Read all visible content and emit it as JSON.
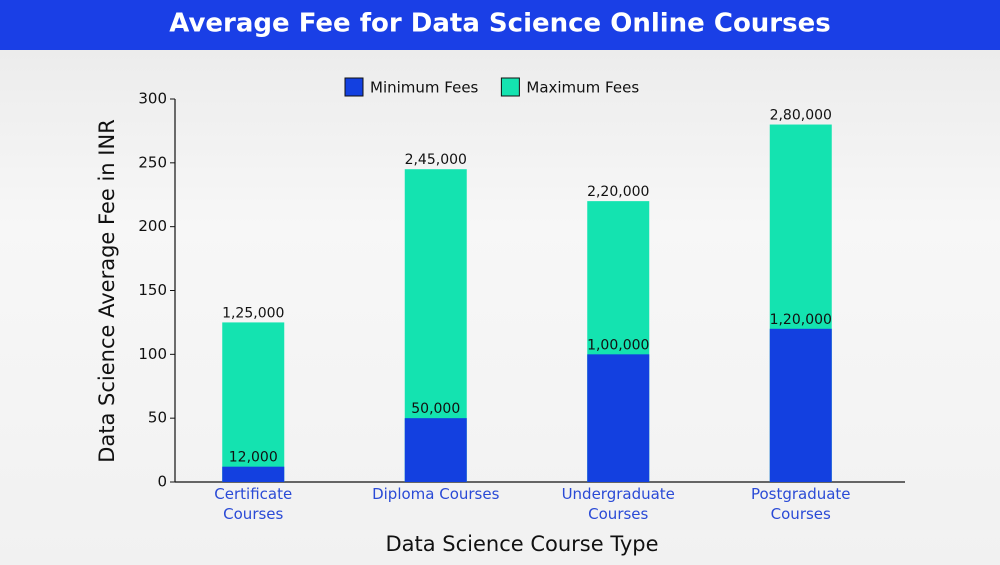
{
  "chart_data": {
    "type": "bar",
    "title": "Average Fee for Data Science Online Courses",
    "x_label": "Data Science Course Type",
    "y_label": "Data Science Average Fee in INR",
    "categories": [
      "Certificate Courses",
      "Diploma Courses",
      "Undergraduate Courses",
      "Postgraduate Courses"
    ],
    "series": [
      {
        "name": "Minimum Fees",
        "color": "#1340e0",
        "values": [
          12,
          50,
          100,
          120
        ],
        "value_labels": [
          "12,000",
          "50,000",
          "1,00,000",
          "1,20,000"
        ]
      },
      {
        "name": "Maximum Fees",
        "color": "#14e3b0",
        "values": [
          125,
          245,
          220,
          280
        ],
        "value_labels": [
          "1,25,000",
          "2,45,000",
          "2,20,000",
          "2,80,000"
        ]
      }
    ],
    "ylim": [
      0,
      300
    ],
    "yticks": [
      0,
      50,
      100,
      150,
      200,
      250,
      300
    ],
    "legend": "top"
  }
}
